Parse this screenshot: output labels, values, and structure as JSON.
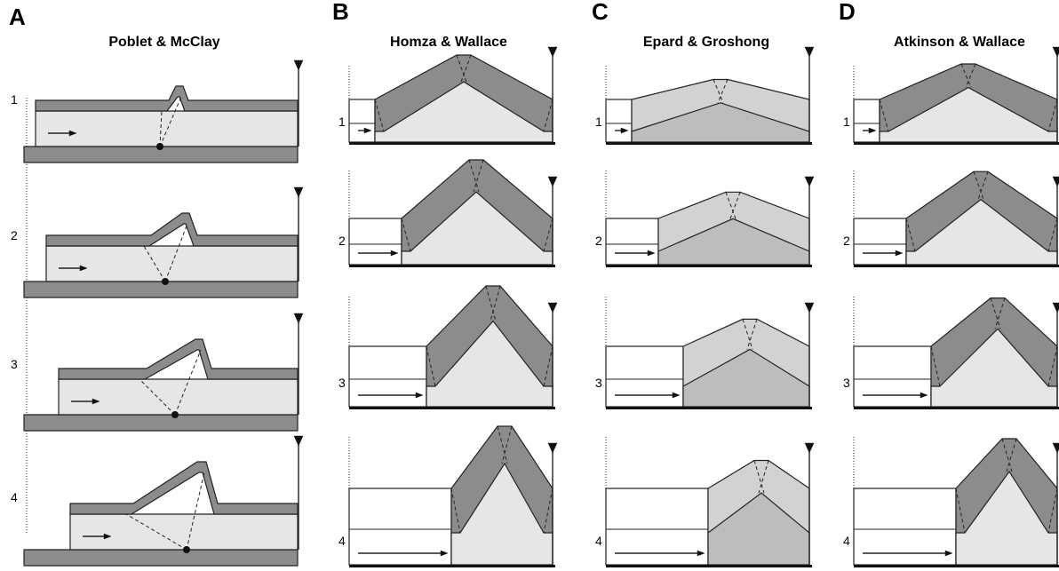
{
  "panels": [
    {
      "letter": "A",
      "title": "Poblet & McClay",
      "steps": [
        "1",
        "2",
        "3",
        "4"
      ]
    },
    {
      "letter": "B",
      "title": "Homza & Wallace",
      "steps": [
        "1",
        "2",
        "3",
        "4"
      ]
    },
    {
      "letter": "C",
      "title": "Epard & Groshong",
      "steps": [
        "1",
        "2",
        "3",
        "4"
      ]
    },
    {
      "letter": "D",
      "title": "Atkinson & Wallace",
      "steps": [
        "1",
        "2",
        "3",
        "4"
      ]
    }
  ]
}
